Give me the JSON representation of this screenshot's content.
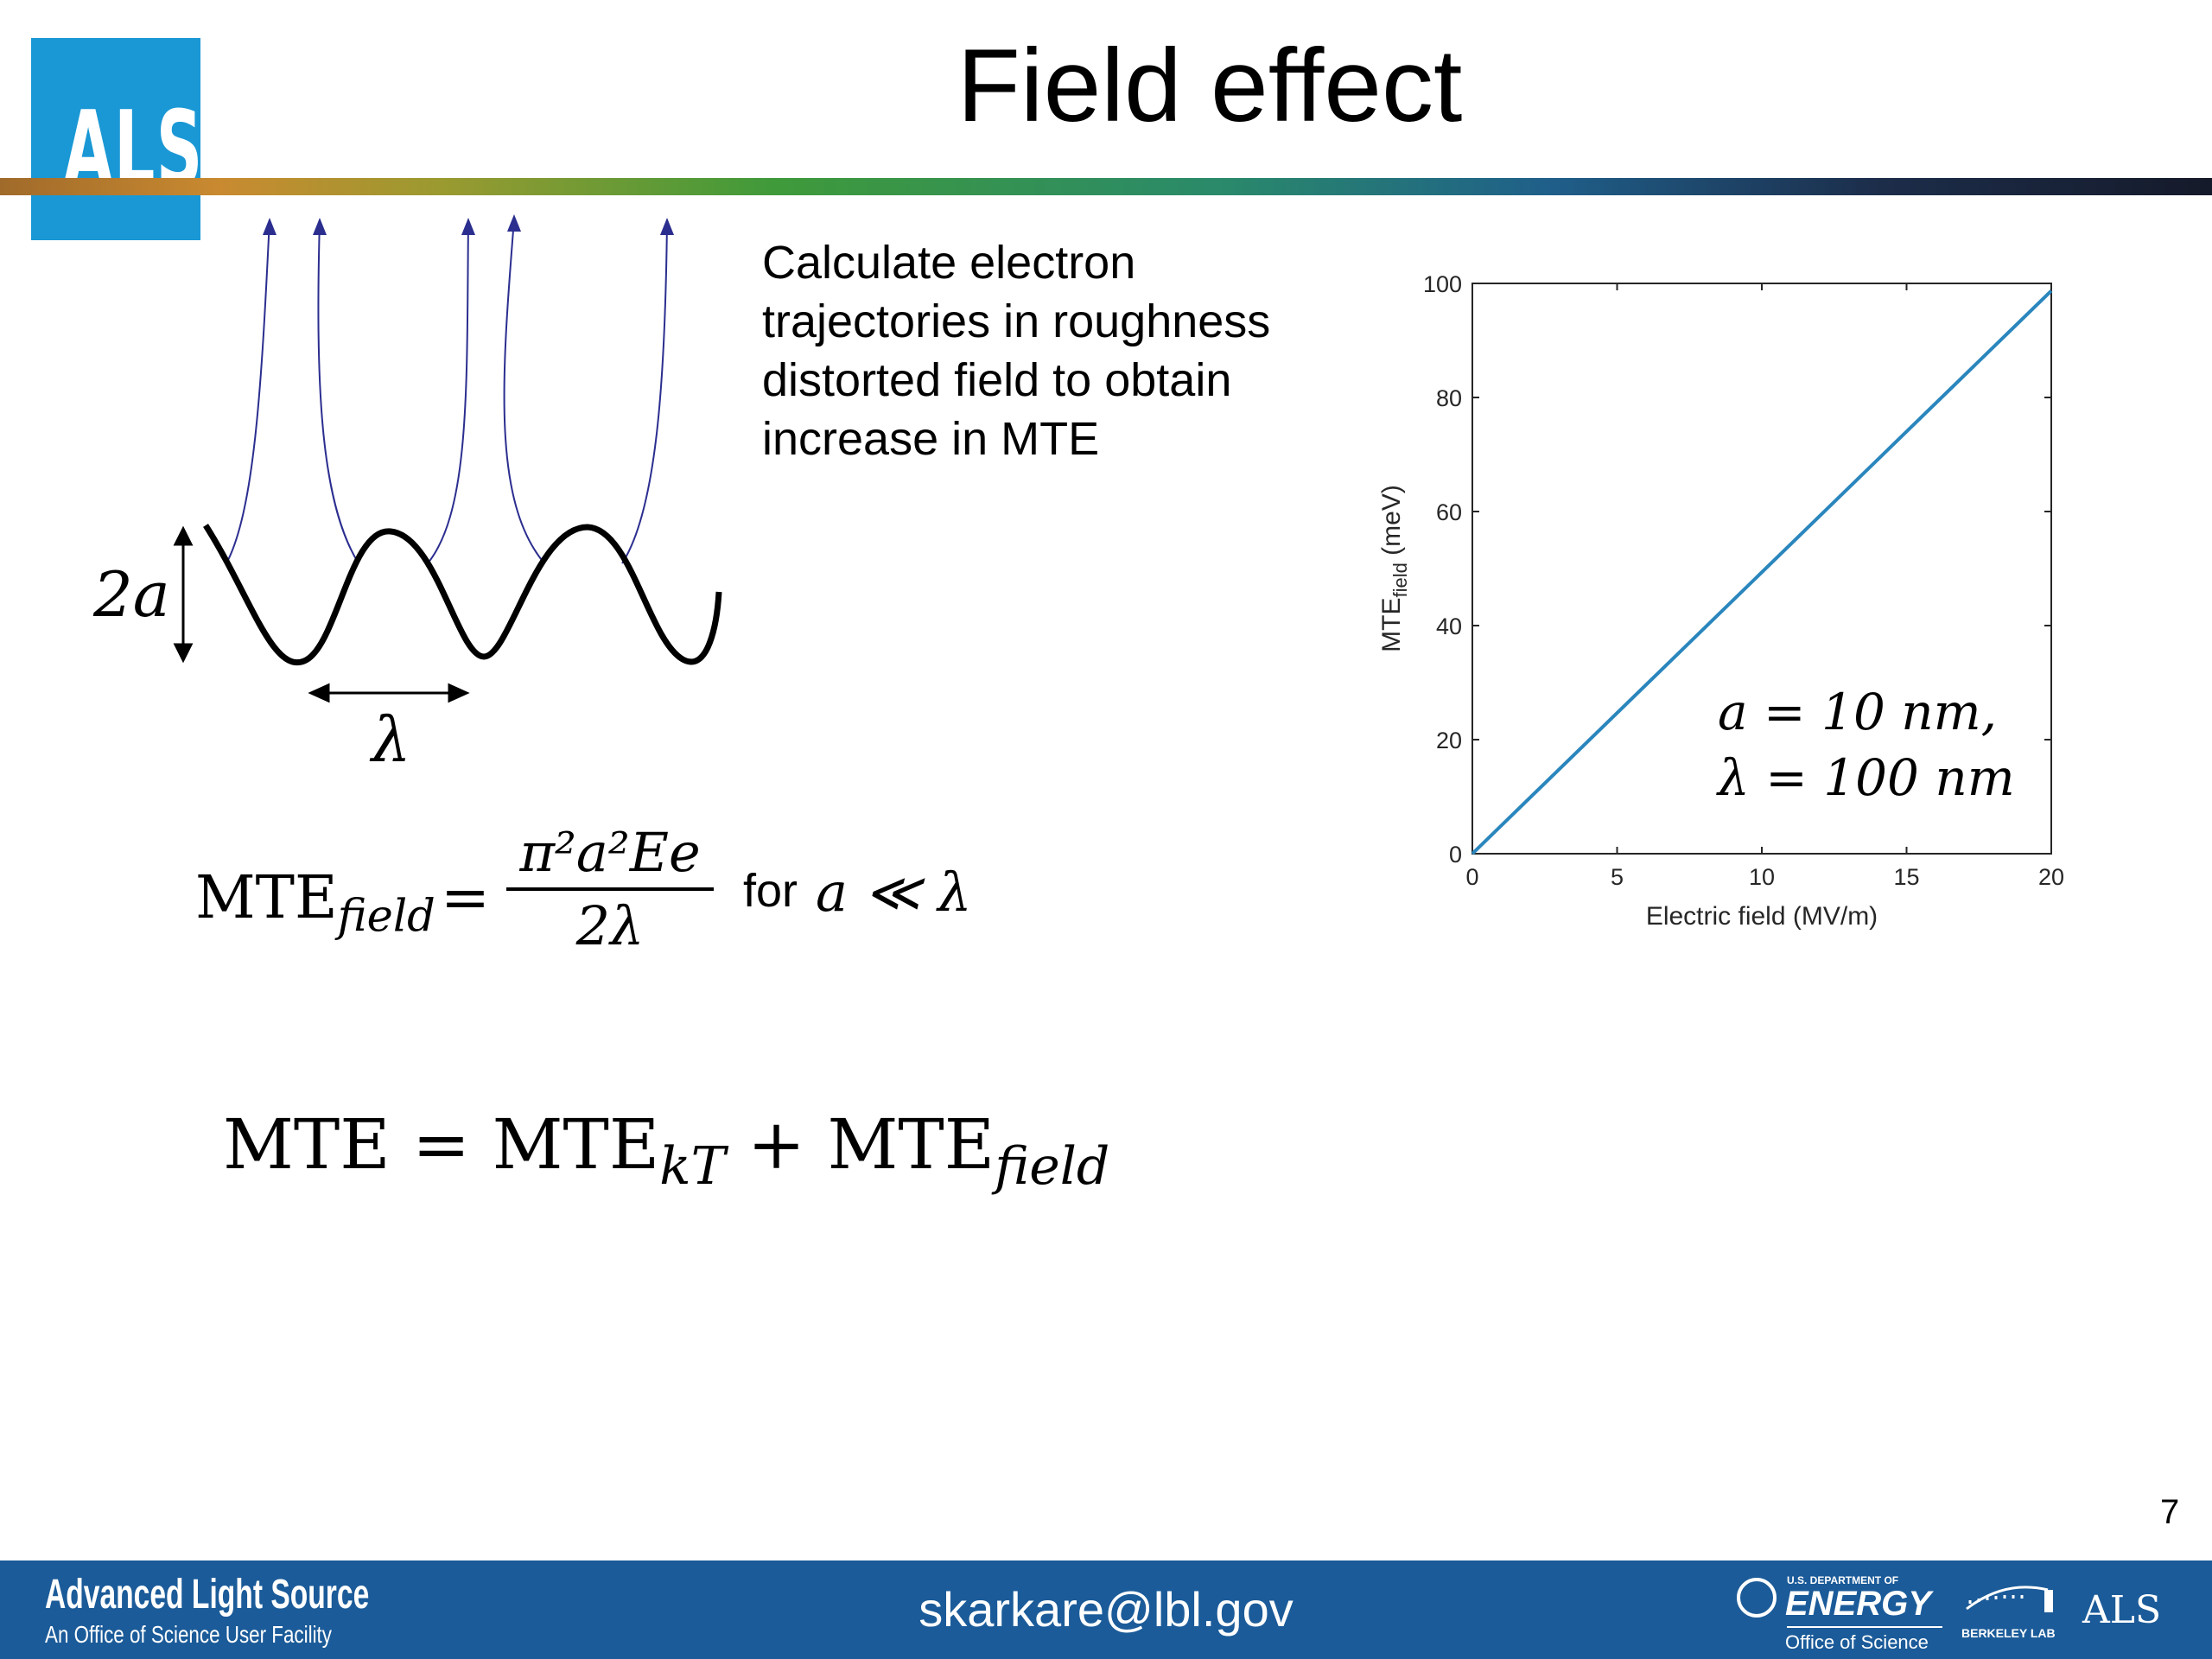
{
  "header": {
    "logo_text": "ALS",
    "title": "Field effect"
  },
  "description": {
    "lines": [
      "Calculate electron",
      "trajectories in roughness",
      "distorted field to obtain",
      "increase in MTE"
    ]
  },
  "diagram": {
    "amplitude_label": "2a",
    "wavelength_label": "λ"
  },
  "equations": {
    "mte_field_lhs": "MTE",
    "mte_field_sub": "field",
    "equals": "=",
    "numerator": "π²a²Ee",
    "denominator": "2λ",
    "condition": "for",
    "condition_math": "a ≪ λ",
    "total_lhs": "MTE = MTE",
    "total_kt_sub": "kT",
    "total_plus": " + MTE",
    "total_field_sub": "field"
  },
  "chart_data": {
    "type": "line",
    "xlabel": "Electric field (MV/m)",
    "ylabel": "MTE",
    "ylabel_sub": "field",
    "ylabel_unit": " (meV)",
    "xlim": [
      0,
      20
    ],
    "ylim": [
      0,
      100
    ],
    "xticks": [
      0,
      5,
      10,
      15,
      20
    ],
    "yticks": [
      0,
      20,
      40,
      60,
      80,
      100
    ],
    "series": [
      {
        "x": [
          0,
          20
        ],
        "y": [
          0,
          98.7
        ],
        "color": "#2a86bd"
      }
    ],
    "annotation_lines": [
      "a = 10 nm,",
      "λ = 100 nm"
    ]
  },
  "footer": {
    "org_name": "Advanced Light Source",
    "org_sub": "An Office of Science User Facility",
    "email": "skarkare@lbl.gov",
    "page_number": "7",
    "doe_small": "U.S. DEPARTMENT OF",
    "doe_big": "ENERGY",
    "doe_office": "Office of Science",
    "berkeley_lab": "BERKELEY LAB",
    "als_mark": "ALS"
  },
  "colors": {
    "footer_bg": "#1b5b99",
    "logo_bg": "#1a98d5",
    "trajectory": "#2b2e8f",
    "line": "#2a86bd"
  }
}
